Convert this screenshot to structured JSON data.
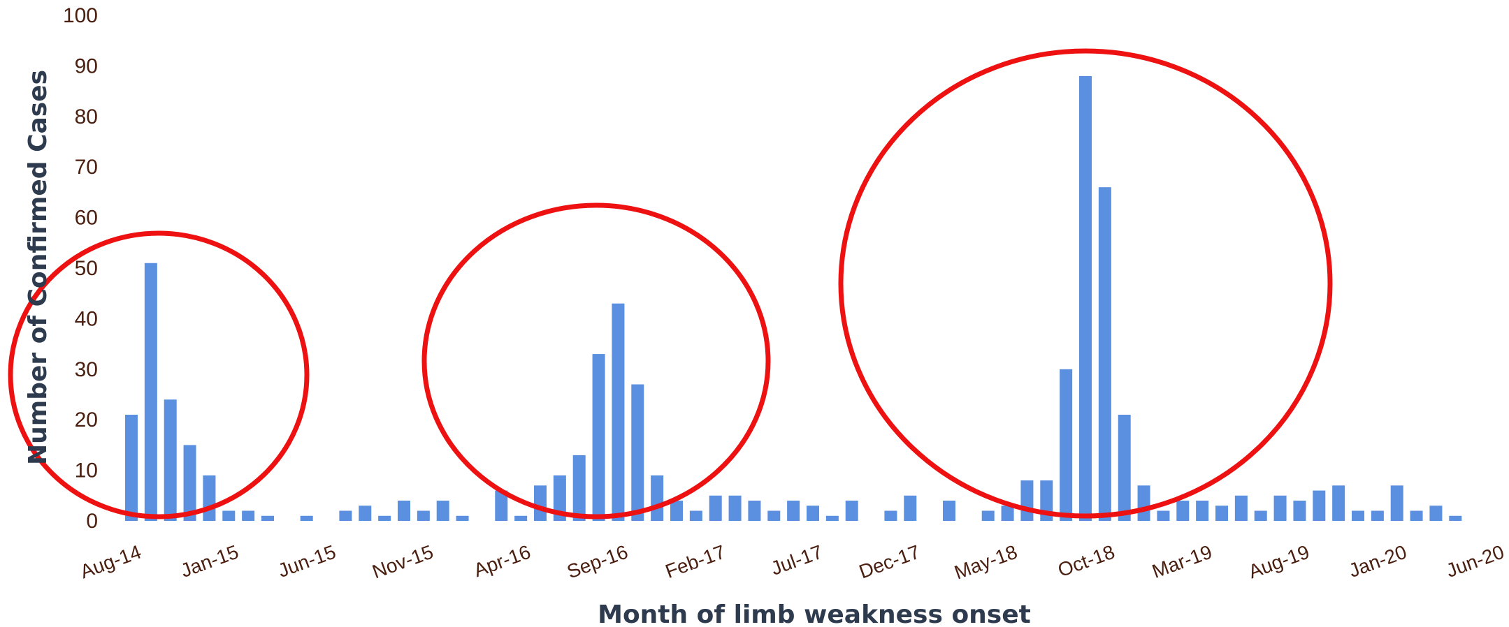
{
  "chart_data": {
    "type": "bar",
    "title": "",
    "xlabel": "Month of limb weakness onset",
    "ylabel": "Number of Confirmed Cases",
    "ylim": [
      0,
      100
    ],
    "yticks": [
      0,
      10,
      20,
      30,
      40,
      50,
      60,
      70,
      80,
      90,
      100
    ],
    "grid": false,
    "legend": "none",
    "bar_color": "#5b8fe0",
    "annotation_color": "#ee1111",
    "x_tick_labels": [
      "Aug-14",
      "Jan-15",
      "Jun-15",
      "Nov-15",
      "Apr-16",
      "Sep-16",
      "Feb-17",
      "Jul-17",
      "Dec-17",
      "May-18",
      "Oct-18",
      "Mar-19",
      "Aug-19",
      "Jan-20",
      "Jun-20"
    ],
    "categories": [
      "Aug-14",
      "Sep-14",
      "Oct-14",
      "Nov-14",
      "Dec-14",
      "Jan-15",
      "Feb-15",
      "Mar-15",
      "Apr-15",
      "May-15",
      "Jun-15",
      "Jul-15",
      "Aug-15",
      "Sep-15",
      "Oct-15",
      "Nov-15",
      "Dec-15",
      "Jan-16",
      "Feb-16",
      "Mar-16",
      "Apr-16",
      "May-16",
      "Jun-16",
      "Jul-16",
      "Aug-16",
      "Sep-16",
      "Oct-16",
      "Nov-16",
      "Dec-16",
      "Jan-17",
      "Feb-17",
      "Mar-17",
      "Apr-17",
      "May-17",
      "Jun-17",
      "Jul-17",
      "Aug-17",
      "Sep-17",
      "Oct-17",
      "Nov-17",
      "Dec-17",
      "Jan-18",
      "Feb-18",
      "Mar-18",
      "Apr-18",
      "May-18",
      "Jun-18",
      "Jul-18",
      "Aug-18",
      "Sep-18",
      "Oct-18",
      "Nov-18",
      "Dec-18",
      "Jan-19",
      "Feb-19",
      "Mar-19",
      "Apr-19",
      "May-19",
      "Jun-19",
      "Jul-19",
      "Aug-19",
      "Sep-19",
      "Oct-19",
      "Nov-19",
      "Dec-19",
      "Jan-20",
      "Feb-20",
      "Mar-20",
      "Apr-20",
      "May-20",
      "Jun-20"
    ],
    "values": [
      21,
      51,
      24,
      15,
      9,
      2,
      2,
      1,
      0,
      1,
      0,
      2,
      3,
      1,
      4,
      2,
      4,
      1,
      0,
      6,
      1,
      7,
      9,
      13,
      33,
      43,
      27,
      9,
      4,
      2,
      5,
      5,
      4,
      2,
      4,
      3,
      1,
      4,
      0,
      2,
      5,
      0,
      4,
      0,
      2,
      3,
      8,
      8,
      30,
      88,
      66,
      21,
      7,
      2,
      4,
      4,
      3,
      5,
      2,
      5,
      4,
      6,
      7,
      2,
      2,
      7,
      2,
      3,
      1,
      0,
      0
    ],
    "annotations": [
      {
        "type": "circle",
        "around": "Aug-14 to Feb-15"
      },
      {
        "type": "circle",
        "around": "Apr-16 to Jan-17"
      },
      {
        "type": "circle",
        "around": "Jun-18 to Jan-19"
      }
    ]
  }
}
